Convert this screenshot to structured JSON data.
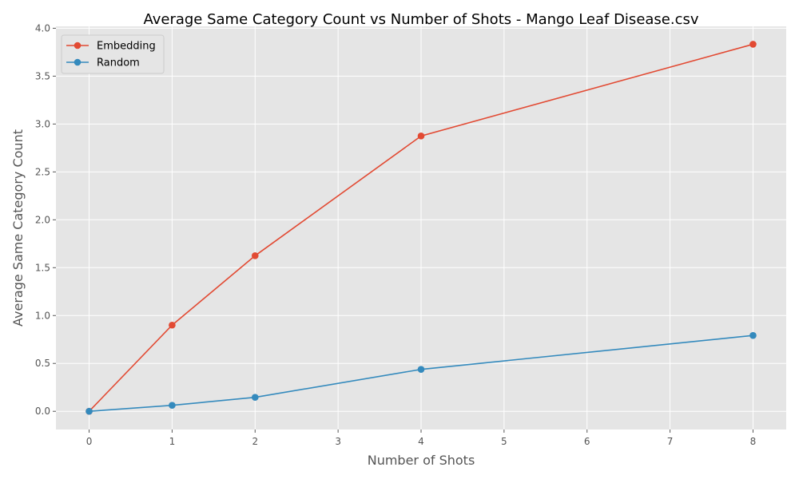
{
  "chart_data": {
    "type": "line",
    "title": "Average Same Category Count vs Number of Shots - Mango Leaf Disease.csv",
    "xlabel": "Number of Shots",
    "ylabel": "Average Same Category Count",
    "xlim": [
      -0.4,
      8.4
    ],
    "ylim": [
      -0.19,
      4.02
    ],
    "xticks": [
      0,
      1,
      2,
      3,
      4,
      5,
      6,
      7,
      8
    ],
    "yticks": [
      0.0,
      0.5,
      1.0,
      1.5,
      2.0,
      2.5,
      3.0,
      3.5,
      4.0
    ],
    "x": [
      0,
      1,
      2,
      4,
      8
    ],
    "series": [
      {
        "name": "Embedding",
        "color": "#E24A33",
        "values": [
          0.0,
          0.9,
          1.625,
          2.875,
          3.833
        ]
      },
      {
        "name": "Random",
        "color": "#348ABD",
        "values": [
          0.0,
          0.0625,
          0.146,
          0.438,
          0.792
        ]
      }
    ],
    "grid": true,
    "legend": "upper-left",
    "background": "#E5E5E5"
  }
}
